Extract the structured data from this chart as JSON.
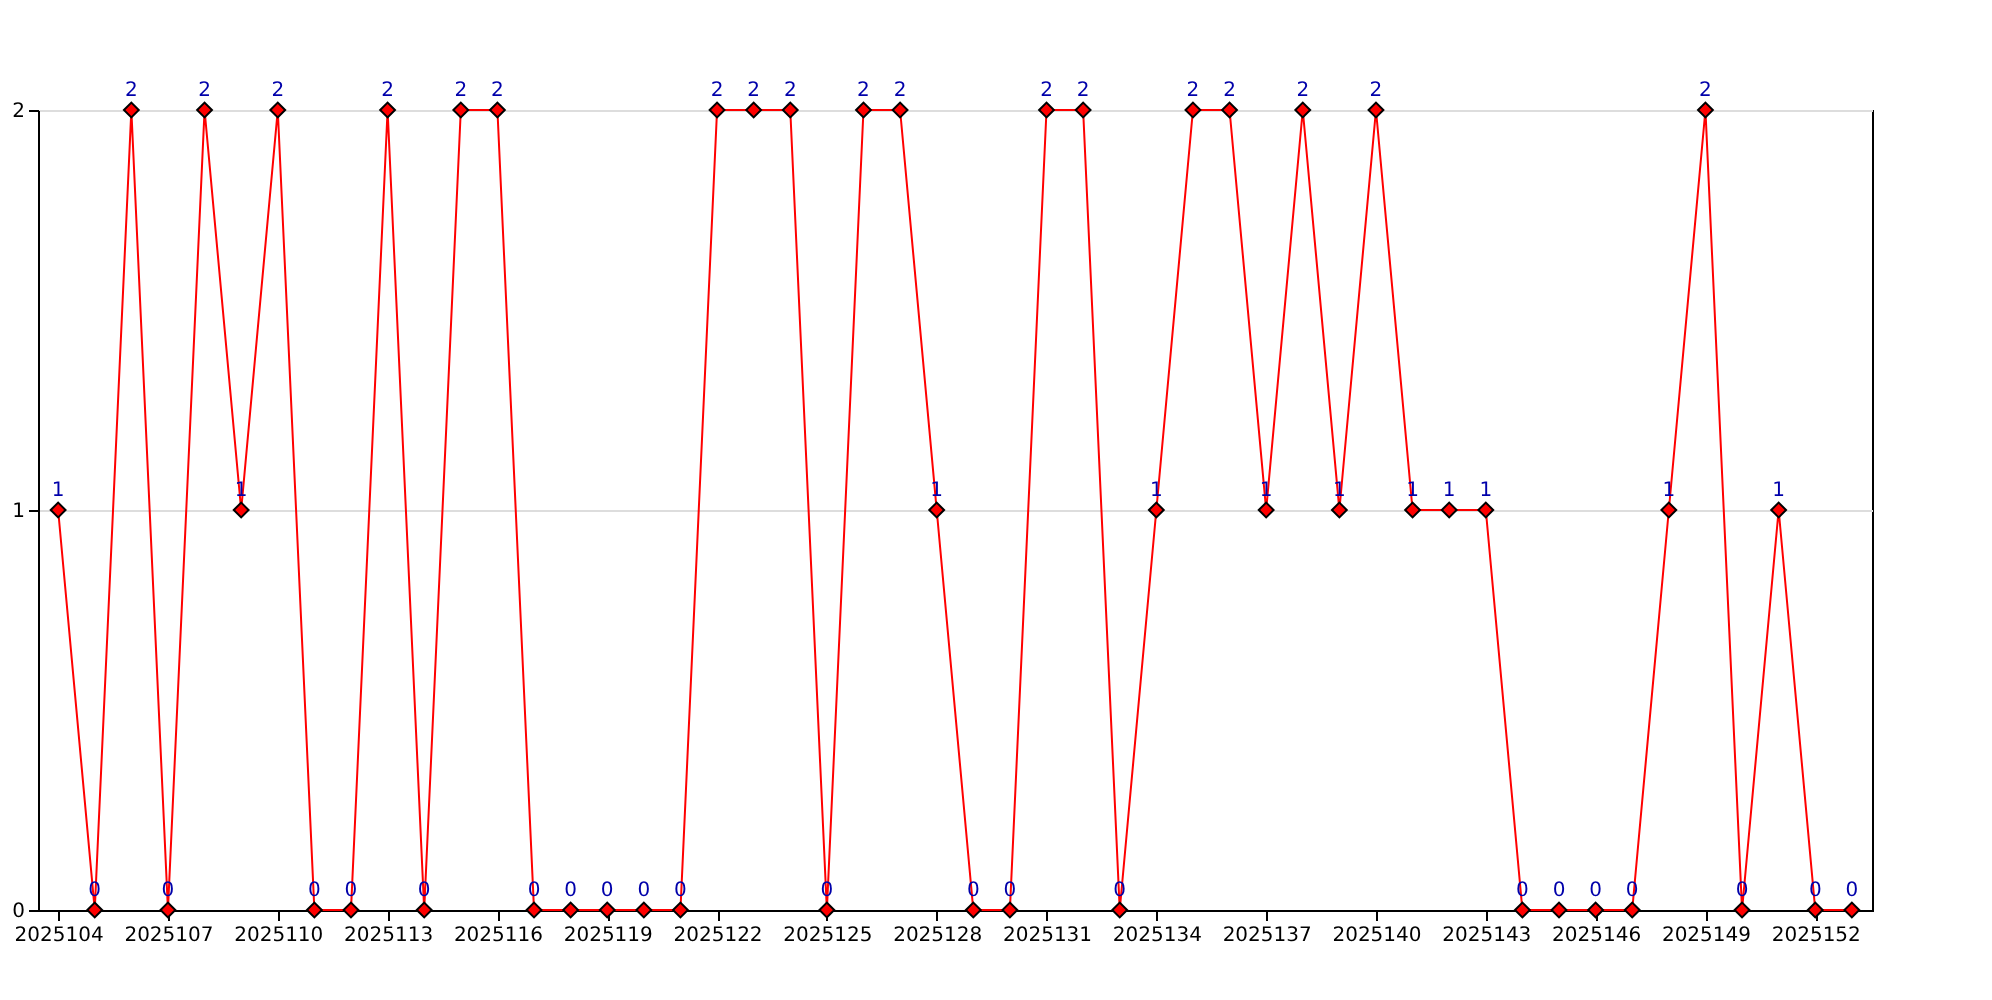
{
  "chart_data": {
    "type": "line",
    "categories": [
      "2025104",
      null,
      null,
      "2025107",
      null,
      null,
      "2025110",
      null,
      null,
      "2025113",
      null,
      null,
      "2025116",
      null,
      null,
      "2025119",
      null,
      null,
      "2025122",
      null,
      null,
      "2025125",
      null,
      null,
      "2025128",
      null,
      null,
      "2025131",
      null,
      null,
      "2025134",
      null,
      null,
      "2025137",
      null,
      null,
      "2025140",
      null,
      null,
      "2025143",
      null,
      null,
      "2025146",
      null,
      null,
      "2025149",
      null,
      null,
      "2025152",
      null
    ],
    "series": [
      {
        "color": "#ff0000",
        "values": [
          1,
          0,
          2,
          0,
          2,
          1,
          2,
          0,
          0,
          2,
          0,
          2,
          2,
          0,
          0,
          0,
          0,
          0,
          2,
          2,
          2,
          0,
          2,
          2,
          1,
          0,
          0,
          2,
          2,
          0,
          1,
          2,
          2,
          1,
          2,
          1,
          2,
          1,
          1,
          1,
          0,
          0,
          0,
          0,
          1,
          2,
          0,
          1,
          0,
          0
        ]
      }
    ],
    "ylim": [
      0,
      2
    ],
    "yticks": [
      0,
      1,
      2
    ],
    "grid": "y",
    "marker": "diamond",
    "line_style": "solid",
    "data_labels": true
  }
}
